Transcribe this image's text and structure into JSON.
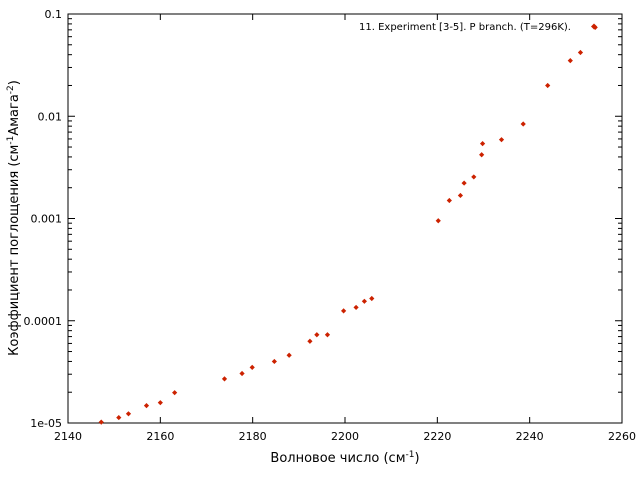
{
  "chart_data": {
    "type": "scatter",
    "xlabel": "Волновое число (см",
    "xlabel_sup": "-1",
    "xlabel_end": ")",
    "ylabel_parts": [
      "Коэффициент поглощения (см",
      "-1",
      "Амага",
      "-2",
      ")"
    ],
    "xlim": [
      2140,
      2260
    ],
    "ylim": [
      1e-05,
      0.1
    ],
    "yscale": "log",
    "grid": false,
    "legend_position": "top-right",
    "x_ticks": [
      2140,
      2160,
      2180,
      2200,
      2220,
      2240,
      2260
    ],
    "x_tick_labels": [
      "2140",
      "2160",
      "2180",
      "2200",
      "2220",
      "2240",
      "2260"
    ],
    "y_ticks": [
      1e-05,
      0.0001,
      0.001,
      0.01,
      0.1
    ],
    "y_tick_labels": [
      "1e-05",
      "0.0001",
      "0.001",
      "0.01",
      "0.1"
    ],
    "series": [
      {
        "name": "11. Experiment [3-5]. P branch. (T=296K).",
        "color": "#cc2200",
        "marker": "diamond",
        "x": [
          2147.2,
          2151.0,
          2153.1,
          2157.0,
          2160.0,
          2163.1,
          2173.9,
          2177.7,
          2179.9,
          2184.7,
          2187.9,
          2192.4,
          2193.9,
          2196.2,
          2199.7,
          2202.4,
          2204.2,
          2205.8,
          2220.2,
          2222.6,
          2225.0,
          2225.8,
          2227.9,
          2229.6,
          2229.8,
          2233.9,
          2238.6,
          2243.9,
          2248.8,
          2251.0,
          2254.2
        ],
        "y": [
          1.02e-05,
          1.13e-05,
          1.23e-05,
          1.48e-05,
          1.58e-05,
          1.98e-05,
          2.7e-05,
          3.05e-05,
          3.5e-05,
          4e-05,
          4.6e-05,
          6.3e-05,
          7.3e-05,
          7.3e-05,
          0.000125,
          0.000135,
          0.000155,
          0.000165,
          0.00095,
          0.0015,
          0.00168,
          0.00222,
          0.00255,
          0.0042,
          0.0054,
          0.0059,
          0.0084,
          0.02,
          0.035,
          0.042,
          0.074
        ]
      }
    ]
  }
}
